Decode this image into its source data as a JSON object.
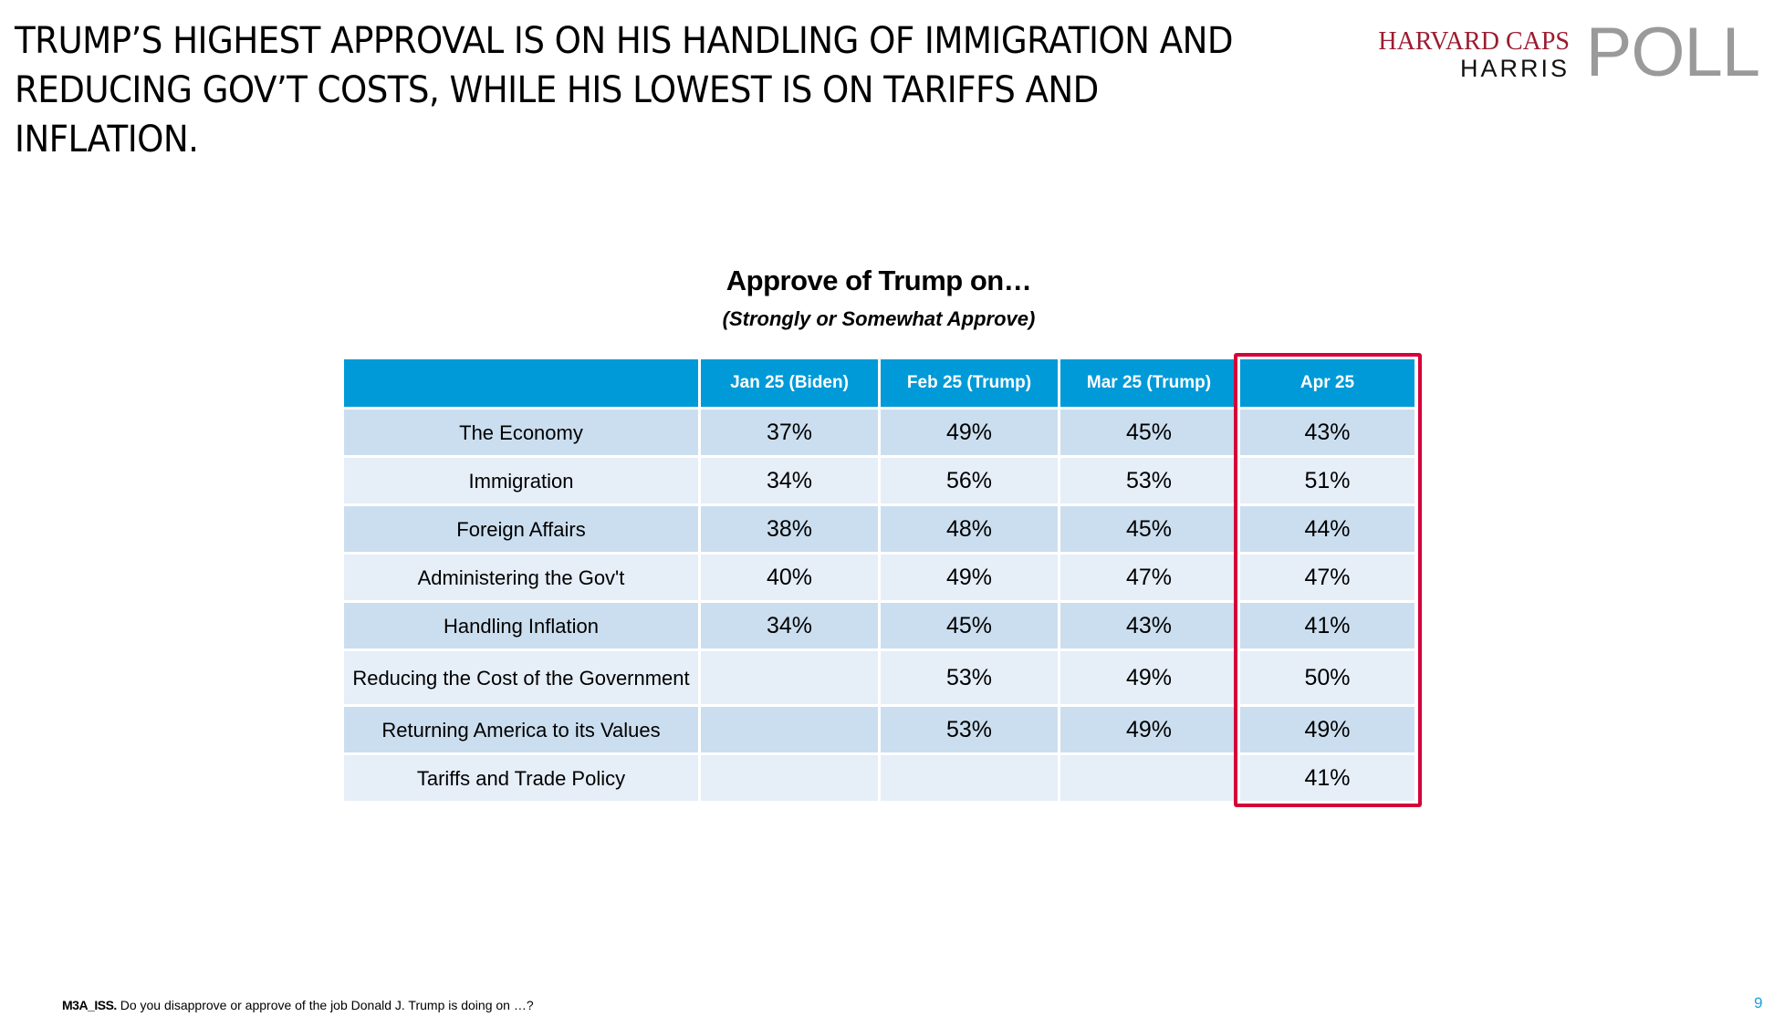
{
  "headline": "TRUMP’S HIGHEST APPROVAL IS ON HIS HANDLING OF IMMIGRATION AND REDUCING GOV’T COSTS, WHILE HIS LOWEST IS ON TARIFFS AND INFLATION.",
  "logo": {
    "line1": "HARVARD CAPS",
    "line2": "HARRIS",
    "poll": "POLL",
    "colors": {
      "line1": "#9b1c31",
      "line2": "#111111",
      "poll": "#9a9a9a"
    }
  },
  "colors": {
    "header_bg": "#009ad8",
    "row_odd": "#cbdeef",
    "row_even": "#e6eef8",
    "highlight_border": "#d6003a",
    "page_number": "#1ea0dc"
  },
  "chart_data": {
    "type": "table",
    "title": "Approve of Trump on…",
    "subtitle": "(Strongly or Somewhat Approve)",
    "columns": [
      "",
      "Jan 25 (Biden)",
      "Feb 25 (Trump)",
      "Mar 25 (Trump)",
      "Apr 25"
    ],
    "highlighted_column": "Apr 25",
    "rows": [
      {
        "label": "The Economy",
        "values": [
          "37%",
          "49%",
          "45%",
          "43%"
        ]
      },
      {
        "label": "Immigration",
        "values": [
          "34%",
          "56%",
          "53%",
          "51%"
        ]
      },
      {
        "label": "Foreign Affairs",
        "values": [
          "38%",
          "48%",
          "45%",
          "44%"
        ]
      },
      {
        "label": "Administering the Gov't",
        "values": [
          "40%",
          "49%",
          "47%",
          "47%"
        ]
      },
      {
        "label": "Handling Inflation",
        "values": [
          "34%",
          "45%",
          "43%",
          "41%"
        ]
      },
      {
        "label": "Reducing the Cost of the Government",
        "values": [
          "",
          "53%",
          "49%",
          "50%"
        ]
      },
      {
        "label": "Returning America to its Values",
        "values": [
          "",
          "53%",
          "49%",
          "49%"
        ]
      },
      {
        "label": "Tariffs and Trade Policy",
        "values": [
          "",
          "",
          "",
          "41%"
        ]
      }
    ]
  },
  "footnote": {
    "code": "M3A_ISS.",
    "text": " Do you disapprove or approve of the job Donald J. Trump is doing on …?"
  },
  "page_number": "9"
}
